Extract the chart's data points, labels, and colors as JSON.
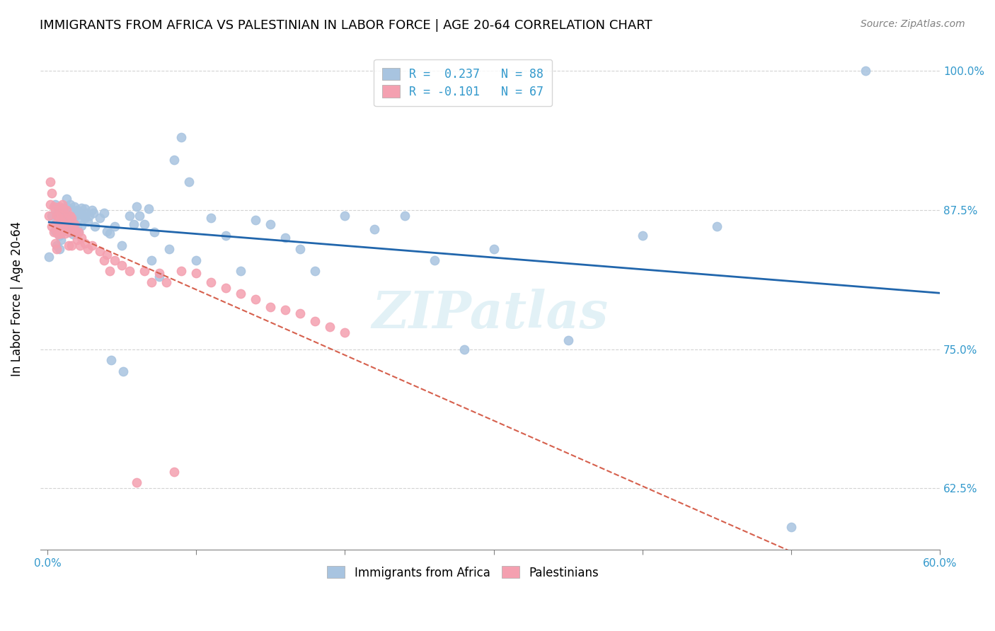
{
  "title": "IMMIGRANTS FROM AFRICA VS PALESTINIAN IN LABOR FORCE | AGE 20-64 CORRELATION CHART",
  "source": "Source: ZipAtlas.com",
  "ylabel": "In Labor Force | Age 20-64",
  "xlim": [
    -0.005,
    0.6
  ],
  "ylim": [
    0.57,
    1.02
  ],
  "xticks": [
    0.0,
    0.1,
    0.2,
    0.3,
    0.4,
    0.5,
    0.6
  ],
  "xticklabels": [
    "0.0%",
    "",
    "",
    "",
    "",
    "",
    "60.0%"
  ],
  "yticks": [
    0.625,
    0.75,
    0.875,
    1.0
  ],
  "yticklabels": [
    "62.5%",
    "75.0%",
    "87.5%",
    "100.0%"
  ],
  "africa_R": 0.237,
  "africa_N": 88,
  "palestinian_R": -0.101,
  "palestinian_N": 67,
  "africa_color": "#a8c4e0",
  "africa_line_color": "#2166ac",
  "palestinian_color": "#f4a0b0",
  "palestinian_line_color": "#d6604d",
  "watermark": "ZIPatlas",
  "africa_points_x": [
    0.001,
    0.003,
    0.005,
    0.005,
    0.006,
    0.007,
    0.007,
    0.008,
    0.008,
    0.009,
    0.01,
    0.01,
    0.011,
    0.011,
    0.012,
    0.012,
    0.013,
    0.013,
    0.013,
    0.014,
    0.014,
    0.015,
    0.015,
    0.016,
    0.016,
    0.017,
    0.017,
    0.018,
    0.018,
    0.019,
    0.019,
    0.02,
    0.02,
    0.021,
    0.021,
    0.022,
    0.023,
    0.023,
    0.024,
    0.025,
    0.025,
    0.026,
    0.027,
    0.028,
    0.03,
    0.031,
    0.032,
    0.035,
    0.038,
    0.04,
    0.042,
    0.043,
    0.045,
    0.05,
    0.051,
    0.055,
    0.058,
    0.06,
    0.062,
    0.065,
    0.068,
    0.07,
    0.072,
    0.075,
    0.082,
    0.085,
    0.09,
    0.095,
    0.1,
    0.11,
    0.12,
    0.13,
    0.14,
    0.15,
    0.16,
    0.17,
    0.18,
    0.2,
    0.22,
    0.24,
    0.26,
    0.28,
    0.3,
    0.35,
    0.4,
    0.45,
    0.5,
    0.55
  ],
  "africa_points_y": [
    0.833,
    0.87,
    0.88,
    0.856,
    0.843,
    0.876,
    0.86,
    0.852,
    0.84,
    0.848,
    0.872,
    0.855,
    0.868,
    0.877,
    0.86,
    0.872,
    0.885,
    0.878,
    0.862,
    0.87,
    0.855,
    0.88,
    0.862,
    0.875,
    0.858,
    0.869,
    0.853,
    0.878,
    0.862,
    0.87,
    0.854,
    0.875,
    0.86,
    0.872,
    0.855,
    0.868,
    0.877,
    0.861,
    0.87,
    0.876,
    0.868,
    0.872,
    0.865,
    0.87,
    0.875,
    0.872,
    0.86,
    0.868,
    0.872,
    0.856,
    0.854,
    0.74,
    0.86,
    0.843,
    0.73,
    0.87,
    0.862,
    0.878,
    0.87,
    0.862,
    0.876,
    0.83,
    0.855,
    0.815,
    0.84,
    0.92,
    0.94,
    0.9,
    0.83,
    0.868,
    0.852,
    0.82,
    0.866,
    0.862,
    0.85,
    0.84,
    0.82,
    0.87,
    0.858,
    0.87,
    0.83,
    0.75,
    0.84,
    0.758,
    0.852,
    0.86,
    0.59,
    1.0
  ],
  "palestinian_points_x": [
    0.001,
    0.002,
    0.002,
    0.003,
    0.003,
    0.004,
    0.004,
    0.005,
    0.005,
    0.005,
    0.006,
    0.006,
    0.006,
    0.007,
    0.007,
    0.008,
    0.008,
    0.009,
    0.009,
    0.01,
    0.01,
    0.011,
    0.011,
    0.012,
    0.012,
    0.013,
    0.013,
    0.014,
    0.015,
    0.015,
    0.016,
    0.016,
    0.017,
    0.018,
    0.019,
    0.02,
    0.021,
    0.022,
    0.023,
    0.025,
    0.027,
    0.03,
    0.035,
    0.038,
    0.04,
    0.042,
    0.045,
    0.05,
    0.055,
    0.06,
    0.065,
    0.07,
    0.075,
    0.08,
    0.085,
    0.09,
    0.1,
    0.11,
    0.12,
    0.13,
    0.14,
    0.15,
    0.16,
    0.17,
    0.18,
    0.19,
    0.2
  ],
  "palestinian_points_y": [
    0.87,
    0.9,
    0.88,
    0.89,
    0.86,
    0.878,
    0.855,
    0.875,
    0.862,
    0.845,
    0.87,
    0.856,
    0.84,
    0.869,
    0.853,
    0.878,
    0.862,
    0.87,
    0.854,
    0.88,
    0.864,
    0.876,
    0.862,
    0.868,
    0.854,
    0.875,
    0.86,
    0.843,
    0.87,
    0.855,
    0.868,
    0.843,
    0.858,
    0.862,
    0.856,
    0.848,
    0.855,
    0.843,
    0.85,
    0.845,
    0.84,
    0.843,
    0.838,
    0.83,
    0.835,
    0.82,
    0.83,
    0.825,
    0.82,
    0.63,
    0.82,
    0.81,
    0.818,
    0.81,
    0.64,
    0.82,
    0.818,
    0.81,
    0.805,
    0.8,
    0.795,
    0.788,
    0.785,
    0.782,
    0.775,
    0.77,
    0.765
  ]
}
